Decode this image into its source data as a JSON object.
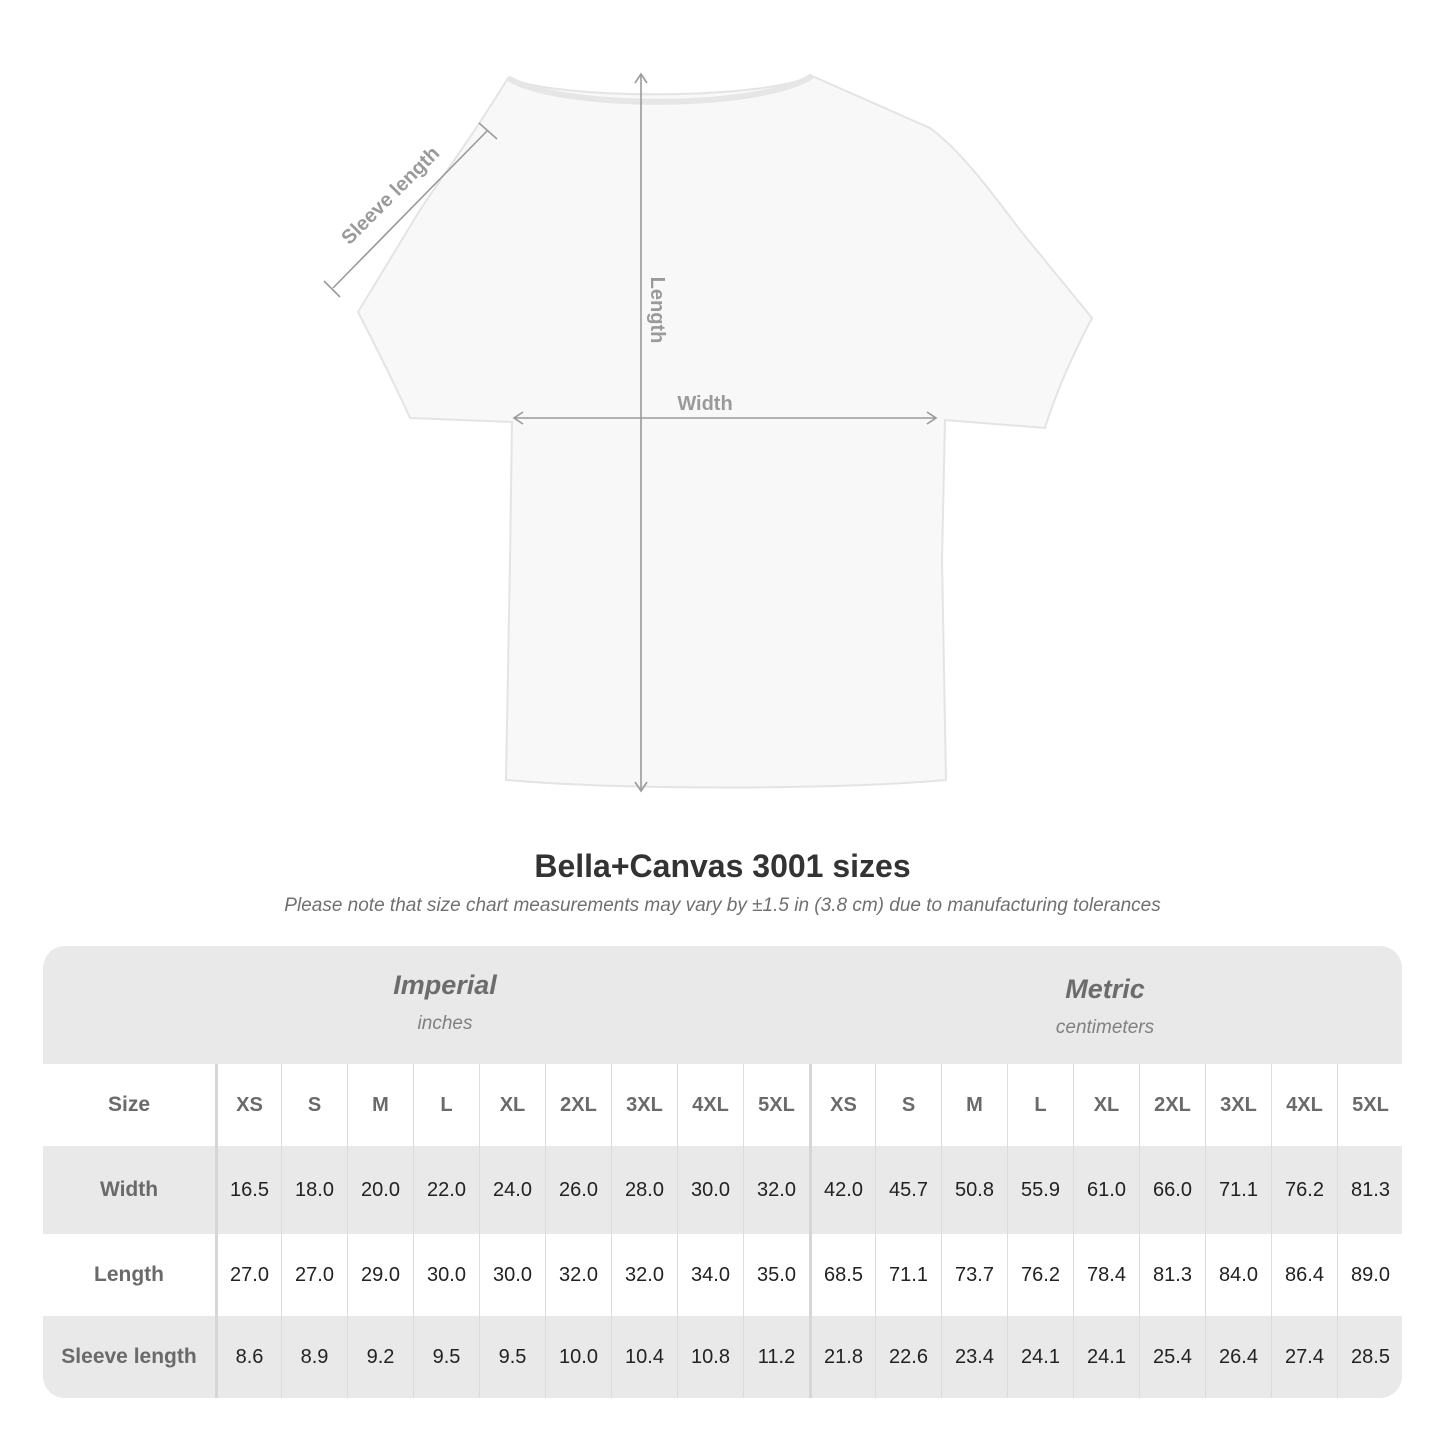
{
  "diagram": {
    "labels": {
      "sleeve": "Sleeve length",
      "length": "Length",
      "width": "Width"
    },
    "shirt_color": "#ffffff",
    "annotation_color": "#9a9a9a"
  },
  "title": "Bella+Canvas 3001 sizes",
  "note": "Please note that size chart measurements may vary by ±1.5 in (3.8 cm) due to manufacturing tolerances",
  "systems": [
    {
      "name": "Imperial",
      "unit": "inches"
    },
    {
      "name": "Metric",
      "unit": "centimeters"
    }
  ],
  "table": {
    "size_label": "Size",
    "sizes": [
      "XS",
      "S",
      "M",
      "L",
      "XL",
      "2XL",
      "3XL",
      "4XL",
      "5XL"
    ],
    "rows": [
      {
        "label": "Width",
        "imperial": [
          "16.5",
          "18.0",
          "20.0",
          "22.0",
          "24.0",
          "26.0",
          "28.0",
          "30.0",
          "32.0"
        ],
        "metric": [
          "42.0",
          "45.7",
          "50.8",
          "55.9",
          "61.0",
          "66.0",
          "71.1",
          "76.2",
          "81.3"
        ]
      },
      {
        "label": "Length",
        "imperial": [
          "27.0",
          "27.0",
          "29.0",
          "30.0",
          "30.0",
          "32.0",
          "32.0",
          "34.0",
          "35.0"
        ],
        "metric": [
          "68.5",
          "71.1",
          "73.7",
          "76.2",
          "78.4",
          "81.3",
          "84.0",
          "86.4",
          "89.0"
        ]
      },
      {
        "label": "Sleeve length",
        "imperial": [
          "8.6",
          "8.9",
          "9.2",
          "9.5",
          "9.5",
          "10.0",
          "10.4",
          "10.8",
          "11.2"
        ],
        "metric": [
          "21.8",
          "22.6",
          "23.4",
          "24.1",
          "24.1",
          "25.4",
          "26.4",
          "27.4",
          "28.5"
        ]
      }
    ]
  }
}
